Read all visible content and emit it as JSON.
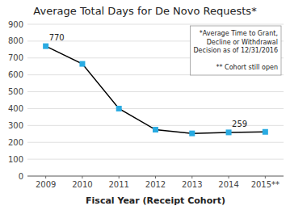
{
  "chart_data": {
    "type": "line",
    "title": "Average Total Days for De Novo Requests*",
    "x_label": "Fiscal Year (Receipt Cohort)",
    "categories": [
      "2009",
      "2010",
      "2011",
      "2012",
      "2013",
      "2014",
      "2015**"
    ],
    "values": [
      770,
      665,
      400,
      275,
      253,
      259,
      262
    ],
    "color": "#000000",
    "marker": "square",
    "marker_color": "#29abe2",
    "ylim": [
      0,
      900
    ],
    "yticks": [
      0,
      100,
      200,
      300,
      400,
      500,
      600,
      700,
      800,
      900
    ],
    "grid": true,
    "annotations": [
      {
        "x": "2009",
        "y": 770,
        "text": "770"
      },
      {
        "x": "2014",
        "y": 259,
        "text": "259"
      }
    ],
    "note": "*Average Time to Grant,\nDecline or Withdrawal\nDecision as of 12/31/2016\n\n** Cohort still open"
  }
}
